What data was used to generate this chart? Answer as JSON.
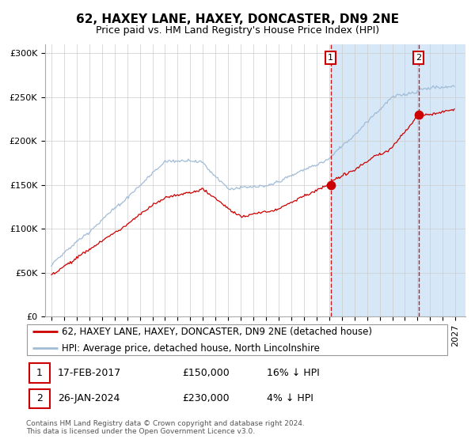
{
  "title": "62, HAXEY LANE, HAXEY, DONCASTER, DN9 2NE",
  "subtitle": "Price paid vs. HM Land Registry's House Price Index (HPI)",
  "ylim": [
    0,
    310000
  ],
  "yticks": [
    0,
    50000,
    100000,
    150000,
    200000,
    250000,
    300000
  ],
  "ytick_labels": [
    "£0",
    "£50K",
    "£100K",
    "£150K",
    "£200K",
    "£250K",
    "£300K"
  ],
  "x_start_year": 1995,
  "x_end_year": 2027,
  "grid_color": "#cccccc",
  "hpi_line_color": "#a0bcd8",
  "price_line_color": "#cc0000",
  "sale1_date_num": 2017.12,
  "sale1_value": 150000,
  "sale1_label": "1",
  "sale2_date_num": 2024.07,
  "sale2_value": 230000,
  "sale2_label": "2",
  "legend_line1": "62, HAXEY LANE, HAXEY, DONCASTER, DN9 2NE (detached house)",
  "legend_line2": "HPI: Average price, detached house, North Lincolnshire",
  "table_row1": [
    "1",
    "17-FEB-2017",
    "£150,000",
    "16% ↓ HPI"
  ],
  "table_row2": [
    "2",
    "26-JAN-2024",
    "£230,000",
    "4% ↓ HPI"
  ],
  "footnote": "Contains HM Land Registry data © Crown copyright and database right 2024.\nThis data is licensed under the Open Government Licence v3.0.",
  "title_fontsize": 11,
  "subtitle_fontsize": 9,
  "tick_fontsize": 8,
  "legend_fontsize": 8.5
}
